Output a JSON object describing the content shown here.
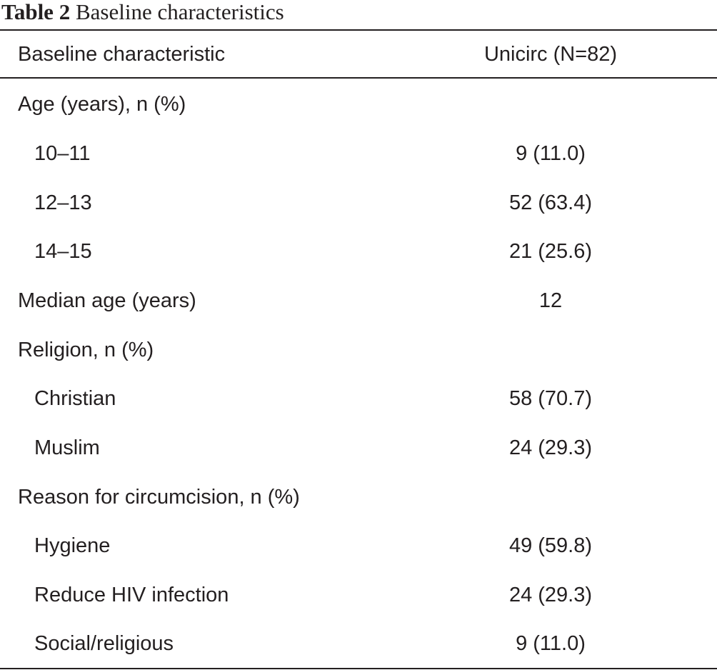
{
  "caption": {
    "number": "Table 2",
    "title": "Baseline characteristics"
  },
  "header": {
    "col1": "Baseline characteristic",
    "col2": "Unicirc (N=82)"
  },
  "rows": [
    {
      "label": "Age (years), n (%)",
      "value": "",
      "indent": false
    },
    {
      "label": "10–11",
      "value": "9 (11.0)",
      "indent": true
    },
    {
      "label": "12–13",
      "value": "52 (63.4)",
      "indent": true
    },
    {
      "label": "14–15",
      "value": "21 (25.6)",
      "indent": true
    },
    {
      "label": "Median age (years)",
      "value": "12",
      "indent": false
    },
    {
      "label": "Religion, n (%)",
      "value": "",
      "indent": false
    },
    {
      "label": "Christian",
      "value": "58 (70.7)",
      "indent": true
    },
    {
      "label": "Muslim",
      "value": "24 (29.3)",
      "indent": true
    },
    {
      "label": "Reason for circumcision, n (%)",
      "value": "",
      "indent": false
    },
    {
      "label": "Hygiene",
      "value": "49 (59.8)",
      "indent": true
    },
    {
      "label": "Reduce HIV infection",
      "value": "24 (29.3)",
      "indent": true
    },
    {
      "label": "Social/religious",
      "value": "9 (11.0)",
      "indent": true
    }
  ]
}
